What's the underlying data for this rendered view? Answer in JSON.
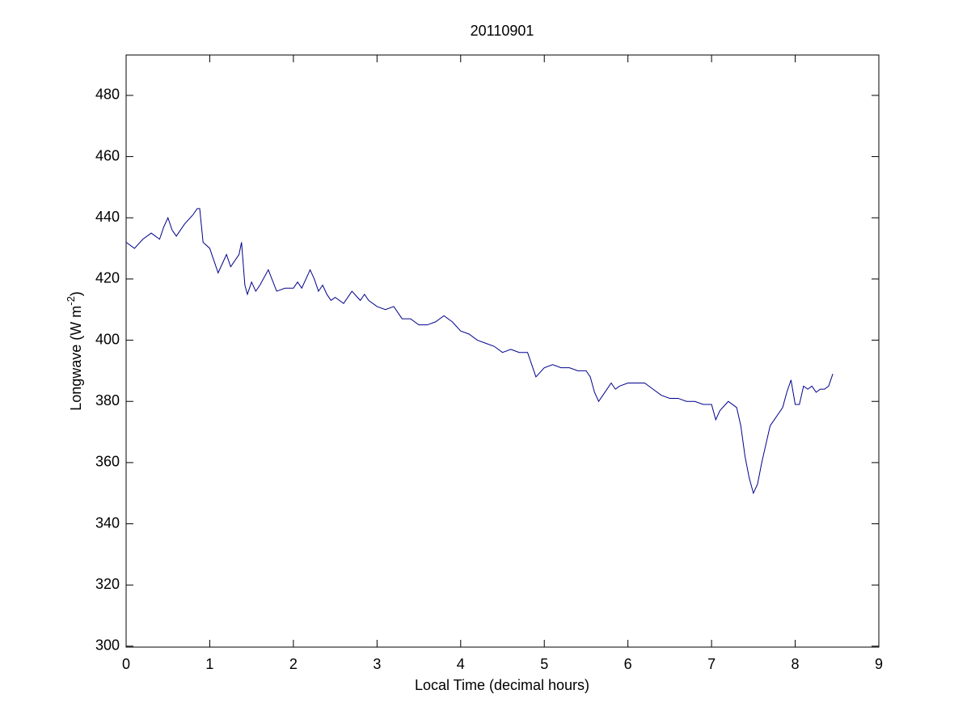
{
  "chart_data": {
    "type": "line",
    "title": "20110901",
    "xlabel": "Local Time (decimal hours)",
    "ylabel": [
      "Longwave (W m",
      "-2",
      ")"
    ],
    "x": [
      0,
      0.1,
      0.2,
      0.3,
      0.4,
      0.45,
      0.5,
      0.55,
      0.6,
      0.7,
      0.8,
      0.85,
      0.88,
      0.92,
      1.0,
      1.1,
      1.2,
      1.25,
      1.35,
      1.38,
      1.42,
      1.45,
      1.5,
      1.55,
      1.6,
      1.7,
      1.8,
      1.9,
      2.0,
      2.05,
      2.1,
      2.2,
      2.25,
      2.3,
      2.35,
      2.4,
      2.45,
      2.5,
      2.6,
      2.7,
      2.8,
      2.85,
      2.9,
      3.0,
      3.1,
      3.2,
      3.3,
      3.4,
      3.5,
      3.6,
      3.7,
      3.8,
      3.9,
      4.0,
      4.1,
      4.2,
      4.3,
      4.4,
      4.5,
      4.6,
      4.7,
      4.8,
      4.85,
      4.9,
      5.0,
      5.1,
      5.2,
      5.3,
      5.4,
      5.5,
      5.55,
      5.6,
      5.65,
      5.7,
      5.8,
      5.85,
      5.9,
      6.0,
      6.1,
      6.2,
      6.3,
      6.4,
      6.5,
      6.6,
      6.7,
      6.8,
      6.9,
      7.0,
      7.05,
      7.1,
      7.2,
      7.3,
      7.35,
      7.4,
      7.45,
      7.5,
      7.55,
      7.6,
      7.65,
      7.7,
      7.75,
      7.8,
      7.85,
      7.9,
      7.95,
      8.0,
      8.05,
      8.1,
      8.15,
      8.2,
      8.25,
      8.3,
      8.35,
      8.4,
      8.45
    ],
    "series": [
      {
        "color": "#00008b",
        "values": [
          432,
          430,
          433,
          435,
          433,
          437,
          440,
          436,
          434,
          438,
          441,
          443,
          443,
          432,
          430,
          422,
          428,
          424,
          428,
          432,
          418,
          415,
          419,
          416,
          418,
          423,
          416,
          417,
          417,
          419,
          417,
          423,
          420,
          416,
          418,
          415,
          413,
          414,
          412,
          416,
          413,
          415,
          413,
          411,
          410,
          411,
          407,
          407,
          405,
          405,
          406,
          408,
          406,
          403,
          402,
          400,
          399,
          398,
          396,
          397,
          396,
          396,
          392,
          388,
          391,
          392,
          391,
          391,
          390,
          390,
          388,
          383,
          380,
          382,
          386,
          384,
          385,
          386,
          386,
          386,
          384,
          382,
          381,
          381,
          380,
          380,
          379,
          379,
          374,
          377,
          380,
          378,
          372,
          362,
          355,
          350,
          353,
          360,
          366,
          372,
          374,
          376,
          378,
          383,
          387,
          379,
          379,
          385,
          384,
          385,
          383,
          384,
          384,
          385,
          389
        ]
      }
    ],
    "xlim": [
      0,
      9
    ],
    "xticks": [
      0,
      1,
      2,
      3,
      4,
      5,
      6,
      7,
      8,
      9
    ],
    "ylim": [
      299.7,
      493.2
    ],
    "yticks": [
      300,
      320,
      340,
      360,
      380,
      400,
      420,
      440,
      460,
      480
    ]
  }
}
